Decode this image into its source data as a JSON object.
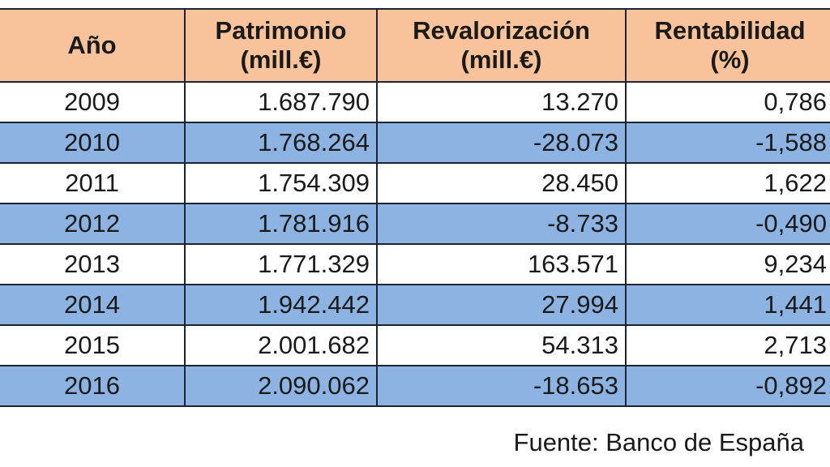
{
  "table": {
    "headers": [
      {
        "line1": "Año",
        "line2": ""
      },
      {
        "line1": "Patrimonio",
        "line2": "(mill.€)"
      },
      {
        "line1": "Revalorización",
        "line2": "(mill.€)"
      },
      {
        "line1": "Rentabilidad",
        "line2": "(%)"
      }
    ],
    "rows": [
      {
        "year": "2009",
        "patrimonio": "1.687.790",
        "revalorizacion": "13.270",
        "rentabilidad": "0,786"
      },
      {
        "year": "2010",
        "patrimonio": "1.768.264",
        "revalorizacion": "-28.073",
        "rentabilidad": "-1,588"
      },
      {
        "year": "2011",
        "patrimonio": "1.754.309",
        "revalorizacion": "28.450",
        "rentabilidad": "1,622"
      },
      {
        "year": "2012",
        "patrimonio": "1.781.916",
        "revalorizacion": "-8.733",
        "rentabilidad": "-0,490"
      },
      {
        "year": "2013",
        "patrimonio": "1.771.329",
        "revalorizacion": "163.571",
        "rentabilidad": "9,234"
      },
      {
        "year": "2014",
        "patrimonio": "1.942.442",
        "revalorizacion": "27.994",
        "rentabilidad": "1,441"
      },
      {
        "year": "2015",
        "patrimonio": "2.001.682",
        "revalorizacion": "54.313",
        "rentabilidad": "2,713"
      },
      {
        "year": "2016",
        "patrimonio": "2.090.062",
        "revalorizacion": "-18.653",
        "rentabilidad": "-0,892"
      }
    ]
  },
  "footer": {
    "source": "Fuente: Banco de España"
  },
  "colors": {
    "header_bg": "#F8C39B",
    "stripe_bg": "#8DB3E2",
    "row_bg": "#FFFFFF",
    "border": "#1C2433"
  }
}
